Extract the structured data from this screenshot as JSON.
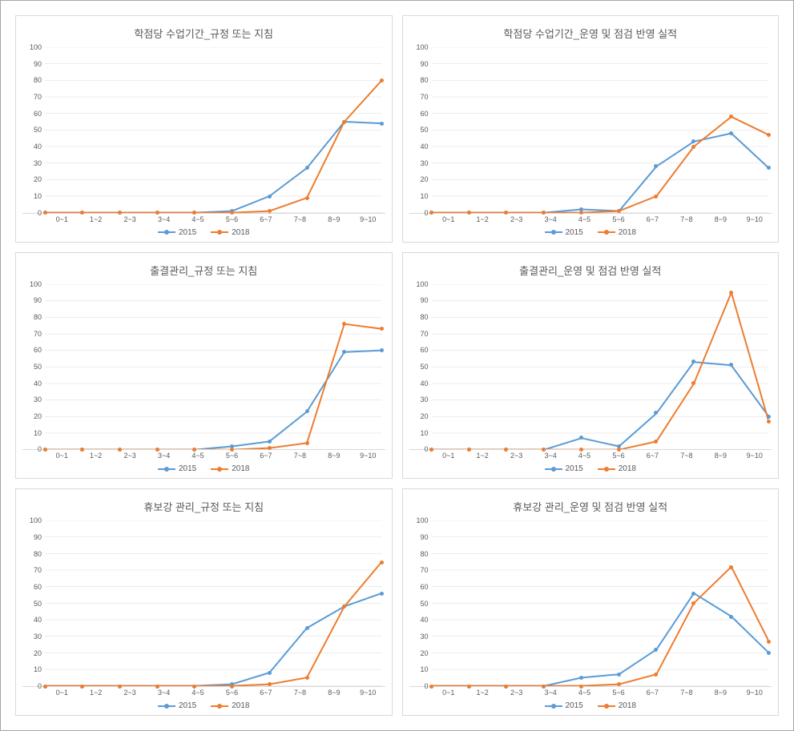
{
  "categories": [
    "0~1",
    "1~2",
    "2~3",
    "3~4",
    "4~5",
    "5~6",
    "6~7",
    "7~8",
    "8~9",
    "9~10"
  ],
  "ylim": [
    0,
    100
  ],
  "ytick_step": 10,
  "colors": {
    "series_2015": "#5b9bd5",
    "series_2018": "#ed7d31",
    "grid": "#d9d9d9",
    "text": "#595959",
    "background": "#ffffff",
    "panel_border": "#d9d9d9",
    "outer_border": "#a6a6a6"
  },
  "typography": {
    "title_fontsize": 13,
    "axis_fontsize": 9,
    "legend_fontsize": 10,
    "font_family": "Malgun Gothic"
  },
  "legend": {
    "series1_label": "2015",
    "series2_label": "2018"
  },
  "line_style": {
    "line_width": 2,
    "marker_size": 5,
    "marker_shape": "circle"
  },
  "charts": [
    {
      "id": "c1",
      "title": "학점당 수업기간_규정 또는 지침",
      "type": "line",
      "series_2015": [
        0,
        0,
        0,
        0,
        0,
        1,
        10,
        27,
        55,
        54
      ],
      "series_2018": [
        0,
        0,
        0,
        0,
        0,
        0,
        1,
        9,
        55,
        80
      ]
    },
    {
      "id": "c2",
      "title": "학점당 수업기간_운영 및 점검 반영 실적",
      "type": "line",
      "series_2015": [
        0,
        0,
        0,
        0,
        2,
        1,
        28,
        43,
        48,
        27
      ],
      "series_2018": [
        0,
        0,
        0,
        0,
        0,
        1,
        10,
        40,
        58,
        47
      ]
    },
    {
      "id": "c3",
      "title": "출결관리_규정 또는 지침",
      "type": "line",
      "series_2015": [
        0,
        0,
        0,
        0,
        0,
        2,
        5,
        23,
        59,
        60
      ],
      "series_2018": [
        0,
        0,
        0,
        0,
        0,
        0,
        1,
        4,
        76,
        73
      ]
    },
    {
      "id": "c4",
      "title": "출결관리_운영 및 점검 반영 실적",
      "type": "line",
      "series_2015": [
        0,
        0,
        0,
        0,
        7,
        2,
        22,
        53,
        51,
        20
      ],
      "series_2018": [
        0,
        0,
        0,
        0,
        0,
        0,
        5,
        40,
        95,
        17
      ]
    },
    {
      "id": "c5",
      "title": "휴보강 관리_규정 또는 지침",
      "type": "line",
      "series_2015": [
        0,
        0,
        0,
        0,
        0,
        1,
        8,
        35,
        48,
        56
      ],
      "series_2018": [
        0,
        0,
        0,
        0,
        0,
        0,
        1,
        5,
        48,
        75
      ]
    },
    {
      "id": "c6",
      "title": "휴보강 관리_운영 및 점검 반영 실적",
      "type": "line",
      "series_2015": [
        0,
        0,
        0,
        0,
        5,
        7,
        22,
        56,
        42,
        20
      ],
      "series_2018": [
        0,
        0,
        0,
        0,
        0,
        1,
        7,
        50,
        72,
        27
      ]
    }
  ]
}
